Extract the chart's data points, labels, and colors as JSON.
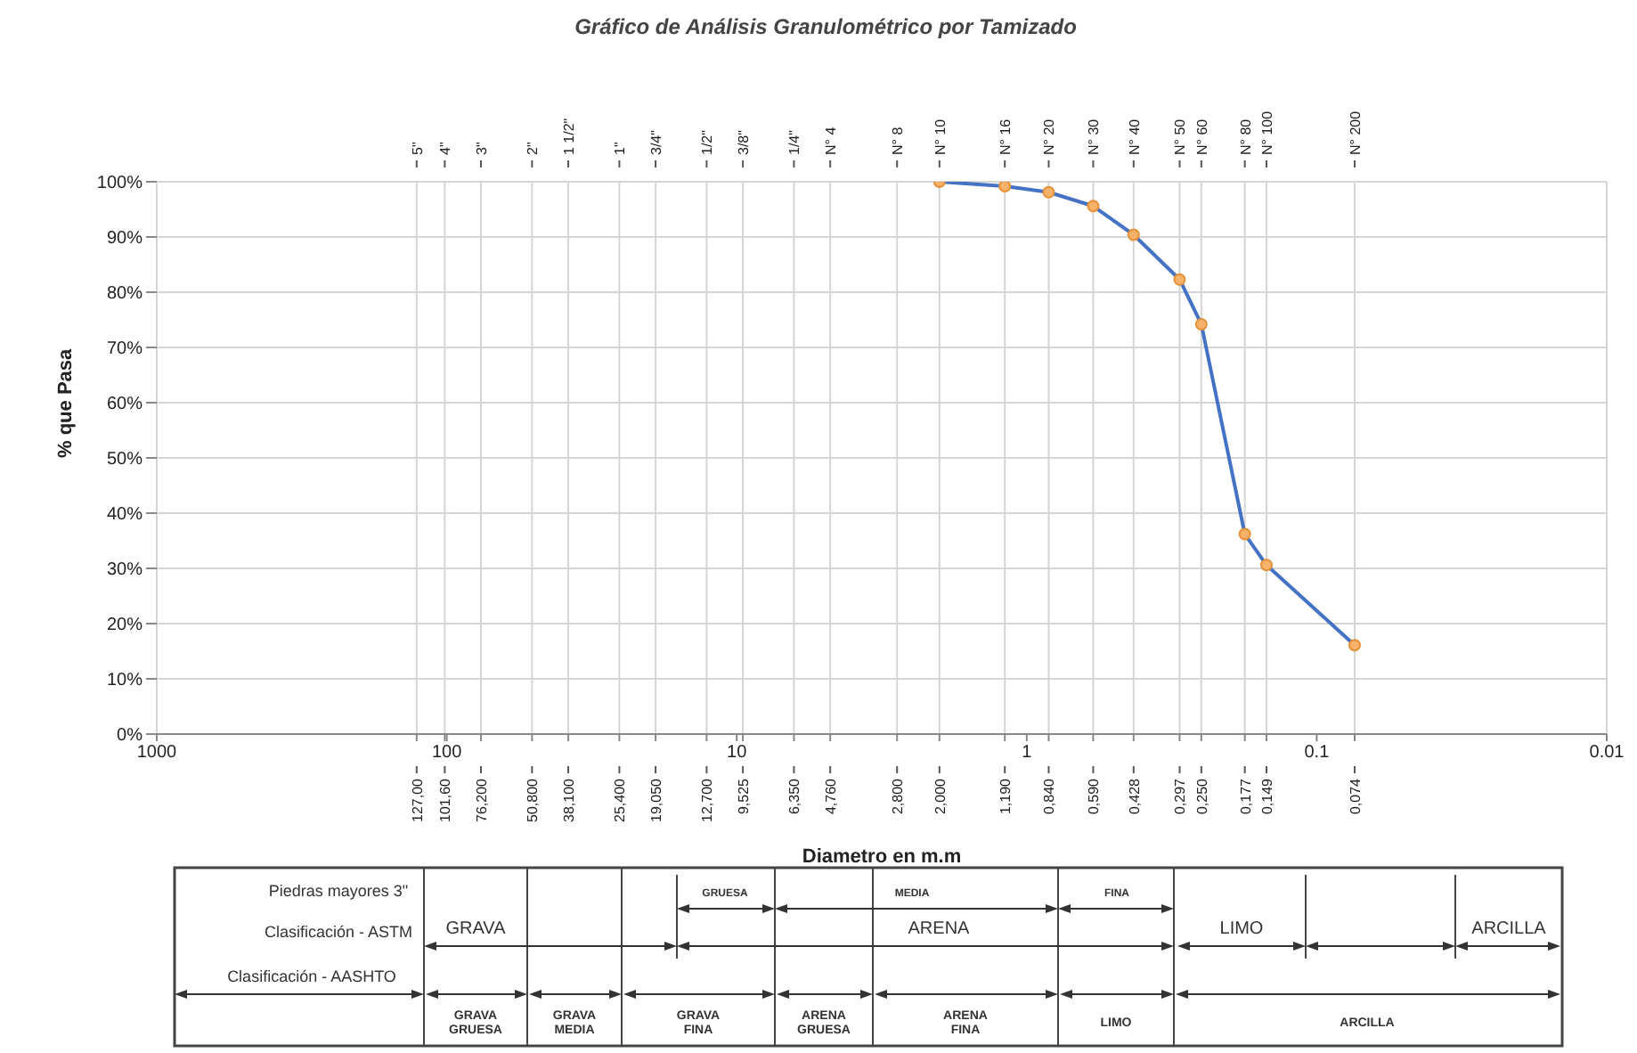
{
  "chart_data": {
    "type": "line",
    "title": "Gráfico de Análisis Granulométrico por Tamizado",
    "xlabel": "Diametro en m.m",
    "ylabel": "% que Pasa",
    "x": [
      2.0,
      1.19,
      0.84,
      0.59,
      0.428,
      0.297,
      0.25,
      0.177,
      0.149,
      0.074
    ],
    "series": [
      {
        "color": "#4472c4",
        "values": [
          100,
          99.2,
          98.1,
          95.6,
          90.4,
          82.3,
          74.2,
          36.2,
          30.6,
          16.1
        ]
      }
    ],
    "marker": "circle",
    "grid": true,
    "log": "x",
    "xlim": [
      1000,
      0.01
    ],
    "xticks": [
      1000,
      100,
      10,
      1,
      0.1,
      0.01,
      {
        "value": 127,
        "label": null
      },
      {
        "value": 101.6,
        "label": null
      },
      {
        "value": 76.2,
        "label": null
      },
      {
        "value": 50.8,
        "label": null
      },
      {
        "value": 38.1,
        "label": null
      },
      {
        "value": 25.4,
        "label": null
      },
      {
        "value": 19.05,
        "label": null
      },
      {
        "value": 12.7,
        "label": null
      },
      {
        "value": 9.525,
        "label": null
      },
      {
        "value": 6.35,
        "label": null
      },
      {
        "value": 4.76,
        "label": null
      },
      {
        "value": 2.8,
        "label": null
      },
      {
        "value": 2.0,
        "label": null
      },
      {
        "value": 1.19,
        "label": null
      },
      {
        "value": 0.84,
        "label": null
      },
      {
        "value": 0.59,
        "label": null
      },
      {
        "value": 0.428,
        "label": null
      },
      {
        "value": 0.297,
        "label": null
      },
      {
        "value": 0.25,
        "label": null
      },
      {
        "value": 0.177,
        "label": null
      },
      {
        "value": 0.149,
        "label": null
      },
      {
        "value": 0.074,
        "label": null
      }
    ],
    "ylim": [
      0,
      100
    ],
    "yticks": [
      {
        "value": 0,
        "label": "0%"
      },
      {
        "value": 10,
        "label": "10%"
      },
      {
        "value": 20,
        "label": "20%"
      },
      {
        "value": 30,
        "label": "30%"
      },
      {
        "value": 40,
        "label": "40%"
      },
      {
        "value": 50,
        "label": "50%"
      },
      {
        "value": 60,
        "label": "60%"
      },
      {
        "value": 70,
        "label": "70%"
      },
      {
        "value": 80,
        "label": "80%"
      },
      {
        "value": 90,
        "label": "90%"
      },
      {
        "value": 100,
        "label": "100%"
      }
    ],
    "annotations": [
      "Piedras mayores 3\"",
      "Clasificación - ASTM",
      "Clasificación - AASHTO",
      "GRUESA",
      "MEDIA",
      "FINA",
      "GRAVA",
      "ARENA",
      "LIMO",
      "ARCILLA",
      "GRAVA GRUESA",
      "GRAVA MEDIA",
      "GRAVA FINA",
      "ARENA GRUESA",
      "ARENA FINA",
      "LIMO",
      "ARCILLA",
      "5\"",
      "4\"",
      "3\"",
      "2\"",
      "1 1/2\"",
      "1\"",
      "3/4\"",
      "1/2\"",
      "3/8\"",
      "1/4\"",
      "N° 4",
      "N° 8",
      "N° 10",
      "N° 16",
      "N° 20",
      "N° 30",
      "N° 40",
      "N° 50",
      "N° 60",
      "N° 80",
      "N° 100",
      "N° 200",
      "127,00",
      "101,60",
      "76,200",
      "50,800",
      "38,100",
      "25,400",
      "19,050",
      "12,700",
      "9,525",
      "6,350",
      "4,760",
      "2,800",
      "2,000",
      "1,190",
      "0,840",
      "0,590",
      "0,428",
      "0,297",
      "0,250",
      "0,177",
      "0,149",
      "0,074"
    ]
  }
}
